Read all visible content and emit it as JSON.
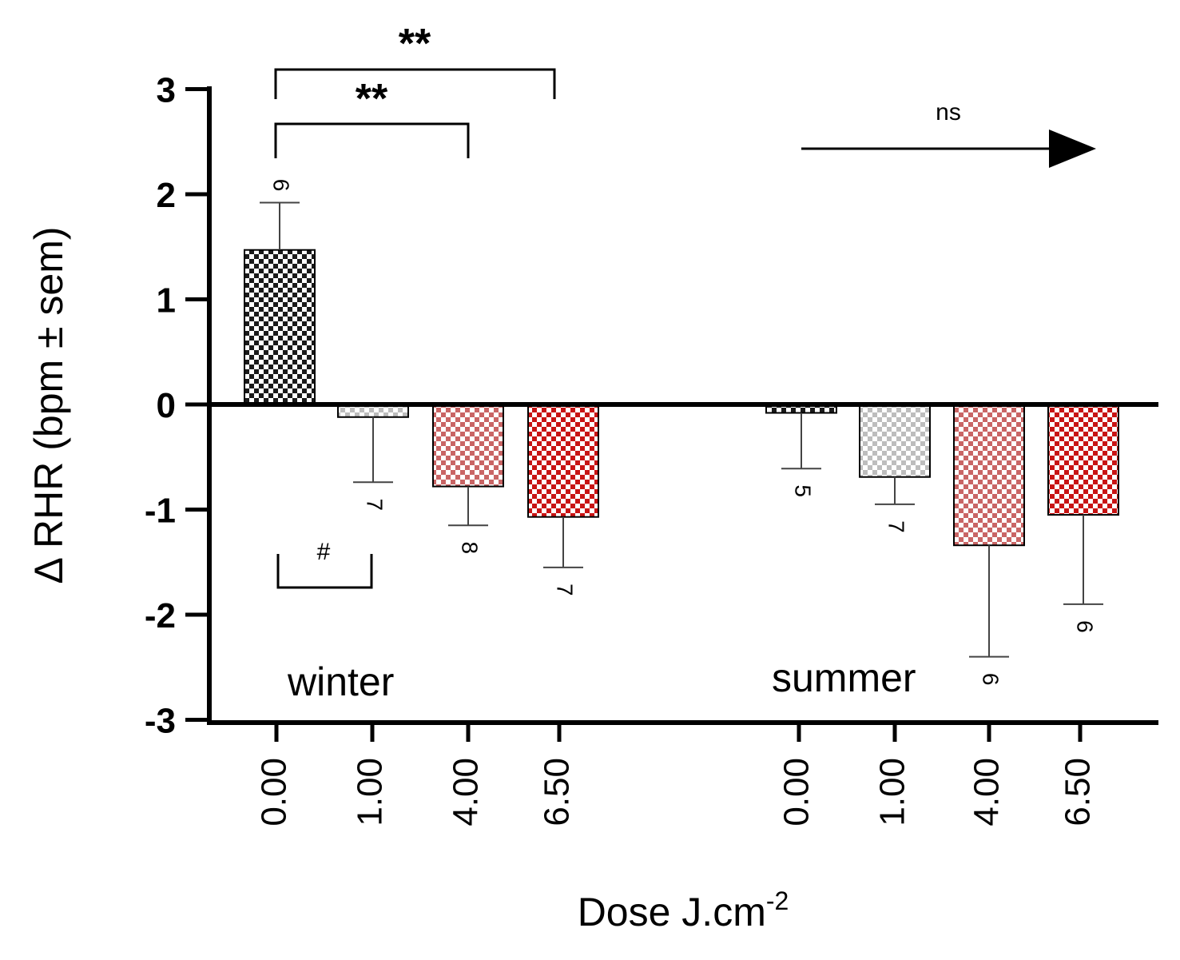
{
  "chart_data": {
    "type": "bar",
    "title": "",
    "xlabel": "Dose J.cm",
    "xlabel_superscript": "-2",
    "ylabel": "Δ RHR (bpm ± sem)",
    "ylim": [
      -3,
      3
    ],
    "yticks": [
      "3",
      "2",
      "1",
      "0",
      "-1",
      "-2",
      "-3"
    ],
    "ytick_values": [
      3,
      2,
      1,
      0,
      -1,
      -2,
      -3
    ],
    "groups": [
      {
        "name": "winter",
        "categories": [
          "0.00",
          "1.00",
          "4.00",
          "6.50"
        ],
        "values": [
          1.47,
          -0.12,
          -0.78,
          -1.07
        ],
        "errors": [
          0.45,
          0.62,
          0.37,
          0.48
        ],
        "n": [
          "6",
          "7",
          "8",
          "7"
        ],
        "colors": [
          "#1a1a1a",
          "#bdbdbd",
          "#c96565",
          "#c81414"
        ]
      },
      {
        "name": "summer",
        "categories": [
          "0.00",
          "1.00",
          "4.00",
          "6.50"
        ],
        "values": [
          -0.08,
          -0.69,
          -1.34,
          -1.05
        ],
        "errors": [
          0.53,
          0.26,
          1.06,
          0.85
        ],
        "n": [
          "5",
          "7",
          "6",
          "6"
        ],
        "colors": [
          "#1a1a1a",
          "#bdbdbd",
          "#c96565",
          "#c81414"
        ]
      }
    ],
    "annotations": {
      "sig_top": "**",
      "sig_mid": "**",
      "hash": "#",
      "ns": "ns"
    }
  }
}
